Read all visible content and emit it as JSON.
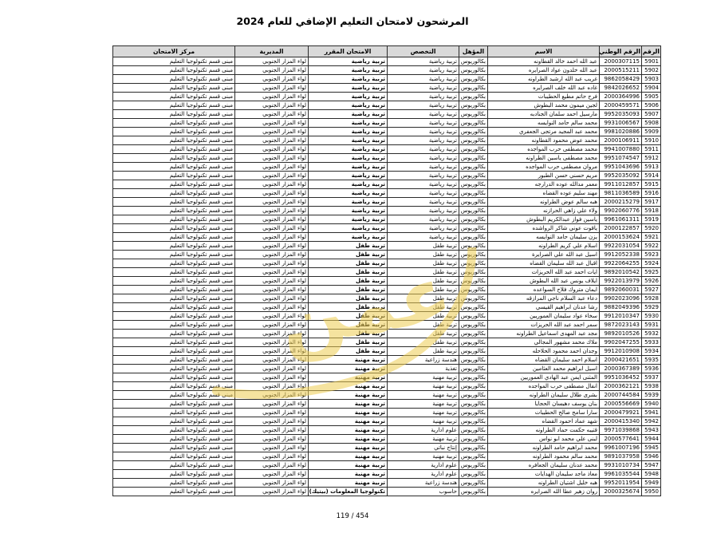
{
  "page": {
    "title": "المرشحون لامتحان التعليم الإضافي للعام 2024",
    "page_number": "119 / 454",
    "watermark_text": "عمن",
    "watermark_color": "#eecd52"
  },
  "table": {
    "headers": [
      "الرقم",
      "الرقم الوطني",
      "الاسم",
      "المؤهل",
      "التخصص",
      "الامتحان المقرر",
      "المديرية",
      "مركز الامتحان"
    ],
    "common": {
      "qualification": "بكالوريوس",
      "directorate": "لواء المزار الجنوبي",
      "exam_center": "مبنى قسم تكنولوجيا التعليم"
    },
    "row_fields": [
      "serial",
      "national_id",
      "name",
      "specialization",
      "exam"
    ],
    "rows": [
      [
        "5901",
        "2000307115",
        "عبد الله احمد خالد القطاونه",
        "تربية رياضية",
        "تربية رياضية"
      ],
      [
        "5902",
        "2000515211",
        "عبد الله خلدون عواد الصرايره",
        "تربية رياضية",
        "تربية رياضية"
      ],
      [
        "5903",
        "9862058429",
        "غريب عبد الله ارشيد الطراونه",
        "تربية رياضية",
        "تربية رياضية"
      ],
      [
        "5904",
        "9842026652",
        "غاده عبد الله خلف الصرايره",
        "تربية رياضية",
        "تربية رياضية"
      ],
      [
        "5905",
        "2000364996",
        "فرح حاتم مطيع الحطيبات",
        "تربية رياضية",
        "تربية رياضية"
      ],
      [
        "5906",
        "2000459571",
        "لجين ميمون محمد البطوش",
        "تربية رياضية",
        "تربية رياضية"
      ],
      [
        "5907",
        "9952035093",
        "مارسيل احمد سلمان الجنادبه",
        "تربية رياضية",
        "تربية رياضية"
      ],
      [
        "5908",
        "9931006567",
        "محمد سالم حامد النوايسه",
        "تربية رياضية",
        "تربية رياضية"
      ],
      [
        "5909",
        "9981020886",
        "محمد عبد المجيد مرتجى الجعفري",
        "تربية رياضية",
        "تربية رياضية"
      ],
      [
        "5910",
        "2000106911",
        "محمد عوض محمود القطاونه",
        "تربية رياضية",
        "تربية رياضية"
      ],
      [
        "5911",
        "9941007880",
        "محمد مصطفى حرب المواجده",
        "تربية رياضية",
        "تربية رياضية"
      ],
      [
        "5912",
        "9951074547",
        "محمد مصطفى ياسين الطراونه",
        "تربية رياضية",
        "تربية رياضية"
      ],
      [
        "5913",
        "9951043696",
        "مروان مصطفى حرب المواجده",
        "تربية رياضية",
        "تربية رياضية"
      ],
      [
        "5914",
        "9952035092",
        "مريم حسني حسن الطبور",
        "تربية رياضية",
        "تربية رياضية"
      ],
      [
        "5915",
        "9911012857",
        "معمر مدالله عوده الدرارجه",
        "تربية رياضية",
        "تربية رياضية"
      ],
      [
        "5916",
        "9811036589",
        "مهند سليم عوده القضاه",
        "تربية رياضية",
        "تربية رياضية"
      ],
      [
        "5917",
        "2000215279",
        "هبه سالم عوض الطراونه",
        "تربية رياضية",
        "تربية رياضية"
      ],
      [
        "5918",
        "9902060776",
        "ولاء علي زاهي الحرازنه",
        "تربية رياضية",
        "تربية رياضية"
      ],
      [
        "5919",
        "9961061311",
        "ياسين فواز عبدالكريم البطوش",
        "تربية رياضية",
        "تربية رياضية"
      ],
      [
        "5920",
        "2000122857",
        "ياقوت عوني شاكر الرواشده",
        "تربية رياضية",
        "تربية رياضية"
      ],
      [
        "5921",
        "2000153624",
        "يزن سليمان حامد النوايسه",
        "تربية رياضية",
        "تربية رياضية"
      ],
      [
        "5922",
        "9922031054",
        "اسلام علي كريم الطراونه",
        "تربية طفل",
        "تربية طفل"
      ],
      [
        "5923",
        "9912052338",
        "اسيل عبد الله علي الصرايرة",
        "تربية طفل",
        "تربية طفل"
      ],
      [
        "5924",
        "9922064255",
        "اقبال عبد الله سليمان القضاه",
        "تربية طفل",
        "تربية طفل"
      ],
      [
        "5925",
        "9892010542",
        "ايات احمد عبد الله الحريزات",
        "تربية طفل",
        "تربية طفل"
      ],
      [
        "5926",
        "9922013979",
        "ايلاف يونس عبد الله البطوش",
        "تربية طفل",
        "تربية طفل"
      ],
      [
        "5927",
        "9892060031",
        "ايمان متروك فلاح السواعده",
        "تربية طفل",
        "تربية طفل"
      ],
      [
        "5928",
        "9902023096",
        "دعاء عبد السلام ناجي المرازقه",
        "تربية طفل",
        "تربية طفل"
      ],
      [
        "5929",
        "9882049396",
        "رشا عدنان ابراهيم القيسي",
        "تربية طفل",
        "تربية طفل"
      ],
      [
        "5930",
        "9912010347",
        "سخاء عواد سليمان العموريين",
        "تربية طفل",
        "تربية طفل"
      ],
      [
        "5931",
        "9872023143",
        "سمر احمد عبد الله الحريزات",
        "تربية طفل",
        "تربية طفل"
      ],
      [
        "5932",
        "9892010526",
        "مجد عبد المهدى اسماعيل الطراونه",
        "تربية طفل",
        "تربية طفل"
      ],
      [
        "5933",
        "9902047255",
        "ملاك محمد مشهور المجالي",
        "تربية طفل",
        "تربية طفل"
      ],
      [
        "5934",
        "9912010908",
        "وجدان احمد محمود الحلاحله",
        "تربية طفل",
        "تربية طفل"
      ],
      [
        "5935",
        "2000421651",
        "اسلام احمد سليمان القضاه",
        "هندسة زراعية",
        "تربية مهنية"
      ],
      [
        "5936",
        "2000367389",
        "اسيل ابراهيم محمد العثامين",
        "تغذية",
        "تربية مهنية"
      ],
      [
        "5937",
        "9951036452",
        "المثنى ايمن عبد الهادي العموريين",
        "تربية مهنية",
        "تربية مهنية"
      ],
      [
        "5938",
        "2000362121",
        "انفال مصطفى حرب المواجده",
        "تربية مهنية",
        "تربية مهنية"
      ],
      [
        "5939",
        "2000744584",
        "بشرى طلال سليمان الطراونه",
        "تربية مهنية",
        "تربية مهنية"
      ],
      [
        "5940",
        "2000556669",
        "بنان يوسف دهيسان الحجايا",
        "تربية مهنية",
        "تربية مهنية"
      ],
      [
        "5941",
        "2000479921",
        "سارا سامح صالح الحطيبات",
        "تربية مهنية",
        "تربية مهنية"
      ],
      [
        "5942",
        "2000415340",
        "شهد عماد احمود القضاه",
        "تربية مهنية",
        "تربية مهنية"
      ],
      [
        "5943",
        "9971039868",
        "قتيبه حكمت حماد الطراونه",
        "علوم ادارية",
        "تربية مهنية"
      ],
      [
        "5944",
        "2000577641",
        "لبنى علي محمد ابو نواس",
        "تربية مهنية",
        "تربية مهنية"
      ],
      [
        "5945",
        "9961007196",
        "محمد ابراهيم حامد الطراونه",
        "إنتاج نباتي",
        "تربية مهنية"
      ],
      [
        "5946",
        "9891037958",
        "محمد سالم محمود الطراونه",
        "تربية مهنية",
        "تربية مهنية"
      ],
      [
        "5947",
        "9931010734",
        "محمد عدنان سليمان الجعافره",
        "علوم ادارية",
        "تربية مهنية"
      ],
      [
        "5948",
        "9961035544",
        "معاذ ماجد سليمان الهدايات",
        "علوم ادارية",
        "تربية مهنية"
      ],
      [
        "5949",
        "9952011954",
        "هبه خليل اشتيان الطراونه",
        "هندسة زراعية",
        "تربية مهنية"
      ],
      [
        "5950",
        "2000325674",
        "روان زهير عطا الله الصرايره",
        "حاسوب",
        "تكنولوجيا المعلومات (بيتيك)"
      ]
    ]
  }
}
